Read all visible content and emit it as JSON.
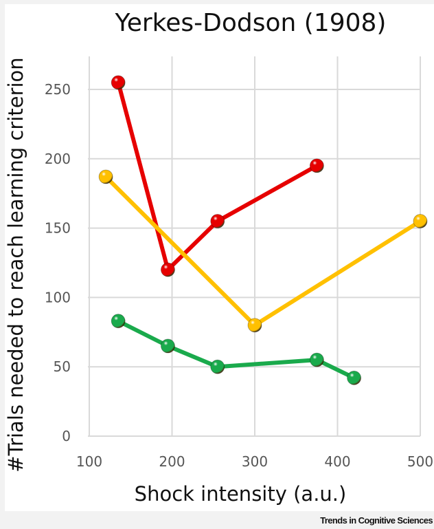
{
  "chart_data": {
    "type": "line",
    "title": "Yerkes-Dodson (1908)",
    "xlabel": "Shock intensity (a.u.)",
    "ylabel": "#Trials needed to reach learning criterion",
    "xlim": [
      100,
      500
    ],
    "ylim": [
      0,
      250
    ],
    "xticks": [
      "100",
      "200",
      "300",
      "400",
      "500"
    ],
    "yticks": [
      "0",
      "50",
      "100",
      "150",
      "200",
      "250"
    ],
    "grid": true,
    "legend": "none",
    "series": [
      {
        "color": "#e60000",
        "points": [
          [
            135,
            255
          ],
          [
            195,
            120
          ],
          [
            255,
            155
          ],
          [
            375,
            195
          ]
        ]
      },
      {
        "color": "#ffc000",
        "points": [
          [
            120,
            187
          ],
          [
            300,
            80
          ],
          [
            500,
            155
          ]
        ]
      },
      {
        "color": "#1aaa4c",
        "points": [
          [
            135,
            83
          ],
          [
            195,
            65
          ],
          [
            255,
            50
          ],
          [
            375,
            55
          ],
          [
            420,
            42
          ]
        ]
      }
    ]
  },
  "credit": "Trends in Cognitive Sciences"
}
